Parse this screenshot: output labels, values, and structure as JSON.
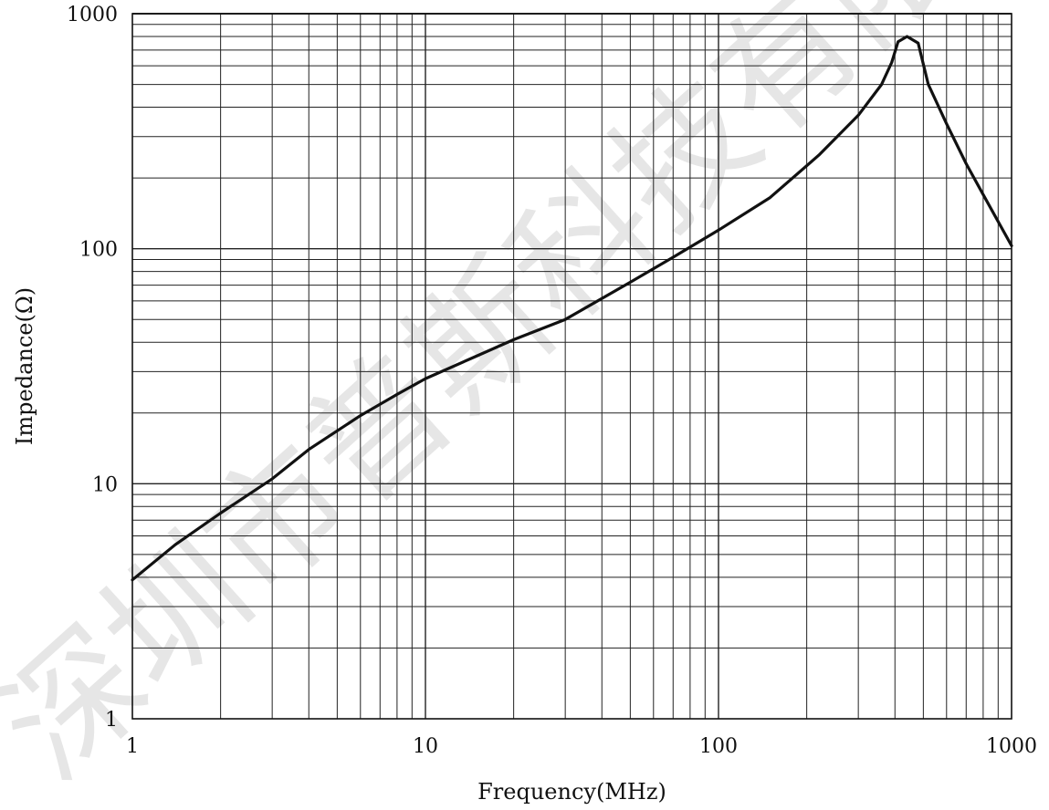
{
  "chart_data": {
    "type": "line",
    "title": "",
    "xlabel": "Frequency(MHz)",
    "ylabel": "Impedance(Ω)",
    "x_scale": "log",
    "y_scale": "log",
    "xlim": [
      1,
      1000
    ],
    "ylim": [
      1,
      1000
    ],
    "x_ticks": [
      "1",
      "10",
      "100",
      "1000"
    ],
    "y_ticks": [
      "1",
      "10",
      "100",
      "1000"
    ],
    "grid": true,
    "line_color": "#111111",
    "watermark_text": "深圳市普斯科技有限公司",
    "series": [
      {
        "x": [
          1,
          1.4,
          2,
          3,
          4,
          6,
          8,
          10,
          15,
          20,
          30,
          50,
          70,
          100,
          150,
          220,
          300,
          360,
          390,
          410,
          440,
          480,
          520,
          600,
          700,
          800,
          1000
        ],
        "y": [
          3.9,
          5.5,
          7.5,
          10.5,
          14,
          19.5,
          24,
          28,
          35,
          41,
          50,
          72,
          92,
          120,
          165,
          250,
          370,
          500,
          620,
          760,
          800,
          750,
          500,
          340,
          230,
          170,
          103
        ]
      }
    ]
  }
}
